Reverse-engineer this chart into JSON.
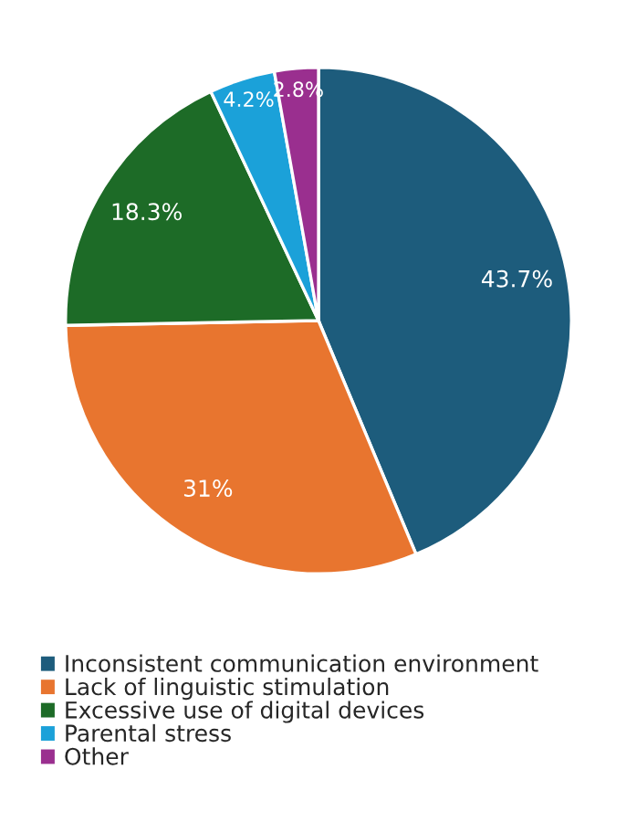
{
  "chart_data": {
    "type": "pie",
    "categories": [
      "Inconsistent communication environment",
      "Lack of linguistic stimulation",
      "Excessive use of digital devices",
      "Parental stress",
      "Other"
    ],
    "values": [
      43.7,
      31,
      18.3,
      4.2,
      2.8
    ],
    "value_labels": [
      "43.7%",
      "31%",
      "18.3%",
      "4.2%",
      "2.8%"
    ],
    "colors": [
      "#1d5c7c",
      "#e8752f",
      "#1d6b27",
      "#1ba1d9",
      "#9a2f8f"
    ],
    "legend": "bottom"
  }
}
